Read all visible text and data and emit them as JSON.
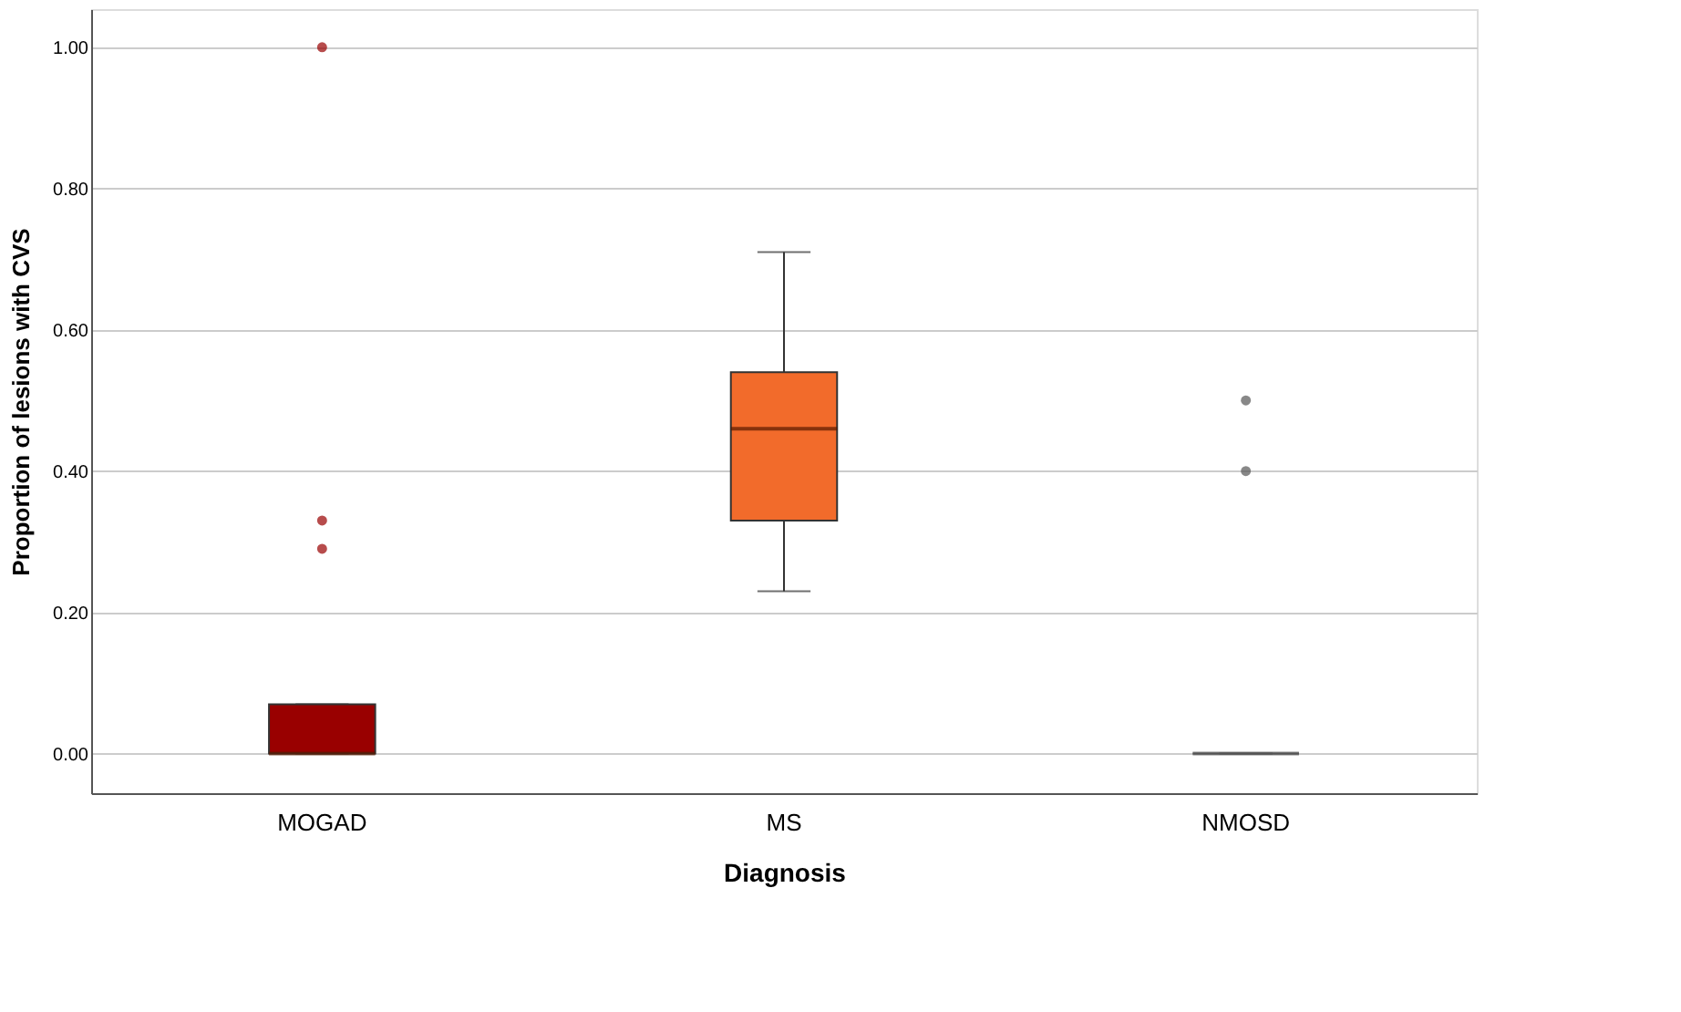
{
  "chart_data": {
    "type": "box",
    "xlabel": "Diagnosis",
    "ylabel": "Proportion of lesions with CVS",
    "categories": [
      "MOGAD",
      "MS",
      "NMOSD"
    ],
    "colors": [
      "#990000",
      "#f26b2b",
      "#555555"
    ],
    "boxes": [
      {
        "low": 0,
        "q1": 0,
        "median": 0,
        "q3": 0.07,
        "high": 0.07,
        "outliers": [
          1.0,
          0.33,
          0.29
        ]
      },
      {
        "low": 0.23,
        "q1": 0.33,
        "median": 0.46,
        "q3": 0.54,
        "high": 0.71
      },
      {
        "low": 0,
        "q1": 0,
        "median": 0,
        "q3": 0,
        "high": 0,
        "outliers": [
          0.5,
          0.4
        ]
      }
    ],
    "ylim": [
      -0.056,
      1.054
    ],
    "yticks": [
      {
        "value": 0,
        "label": "0.00"
      },
      {
        "value": 0.2,
        "label": "0.20"
      },
      {
        "value": 0.4,
        "label": "0.40"
      },
      {
        "value": 0.6,
        "label": "0.60"
      },
      {
        "value": 0.8,
        "label": "0.80"
      },
      {
        "value": 1.0,
        "label": "1.00"
      }
    ],
    "grid": "y"
  }
}
